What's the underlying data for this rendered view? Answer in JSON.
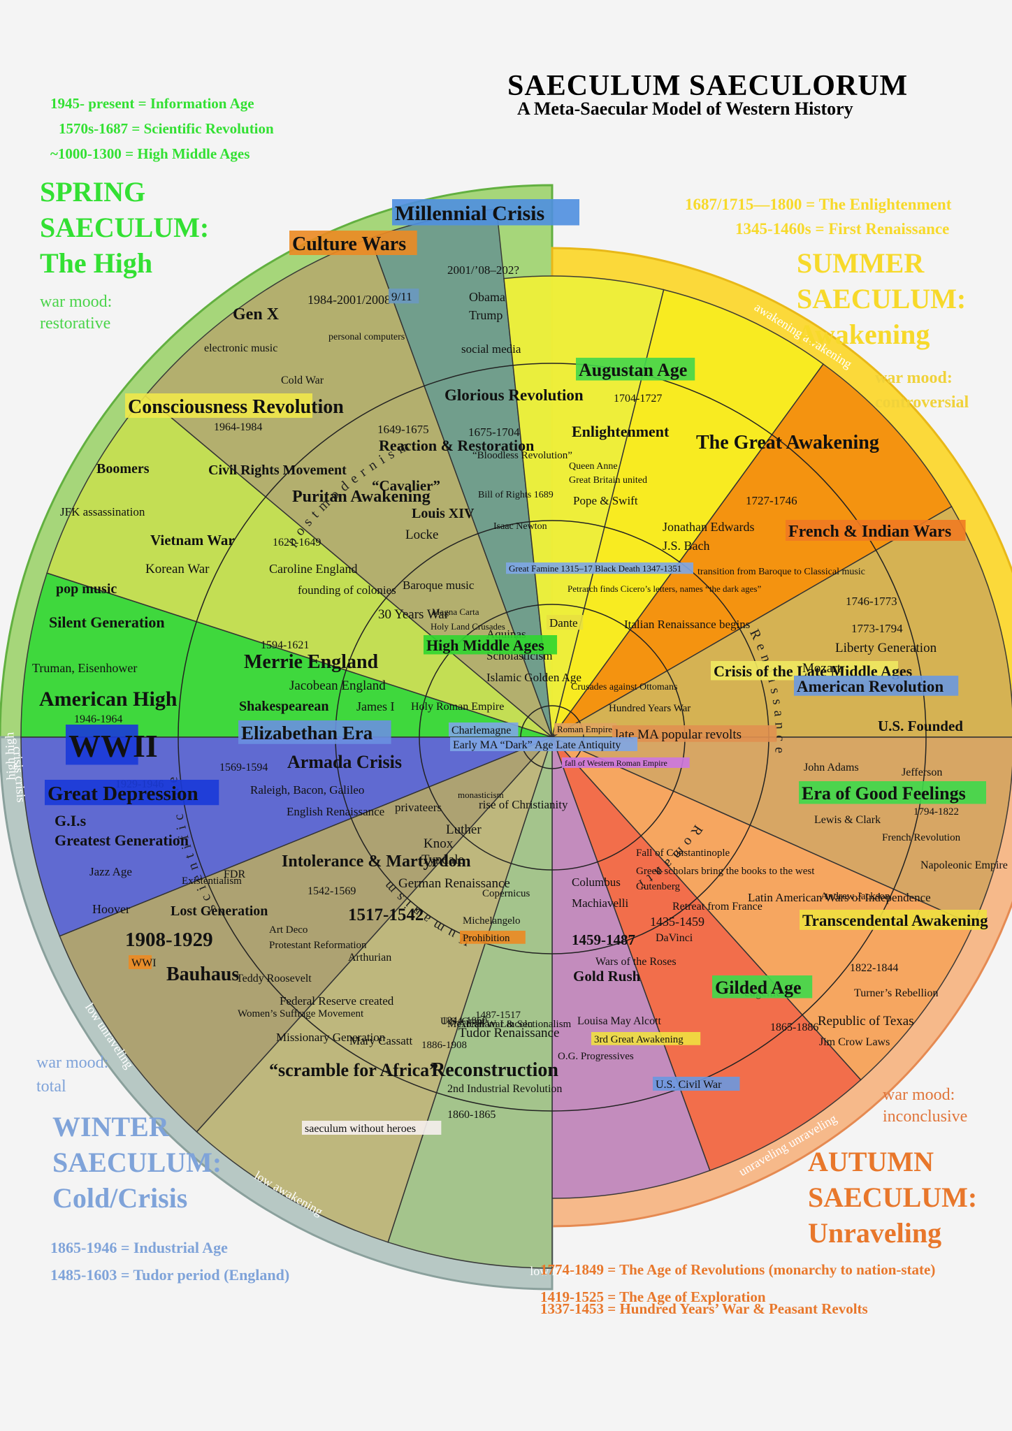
{
  "title": "SAECULUM  SAECULORUM",
  "subtitle": "A Meta-Saecular Model of Western History",
  "colors": {
    "spring": "#3ed94a",
    "summer": "#f8d51a",
    "autumn": "#ee7a38",
    "winter": "#7b9ed6"
  },
  "spring": {
    "eras": [
      "1945- present  = Information Age",
      "1570s-1687 =  Scientific Revolution",
      "~1000-1300  = High Middle Ages"
    ],
    "heading": [
      "SPRING",
      "SAECULUM:",
      "The High"
    ],
    "mood": [
      "war mood:",
      "restorative"
    ]
  },
  "summer": {
    "eras": [
      "1687/1715—1800 =   The Enlightenment",
      "1345-1460s = First Renaissance"
    ],
    "heading": [
      "SUMMER",
      "SAECULUM:",
      "Awakening"
    ],
    "mood": [
      "war mood:",
      "controversial"
    ]
  },
  "winter": {
    "eras": [
      "1865-1946  = Industrial Age",
      "1485-1603  = Tudor period (England)"
    ],
    "heading": [
      "WINTER",
      "SAECULUM:",
      "Cold/Crisis"
    ],
    "mood": [
      "war mood:",
      "total"
    ]
  },
  "autumn": {
    "eras": [
      "1774-1849 = The Age of Revolutions (monarchy to nation-state)",
      "1419-1525 = The Age of Exploration",
      "1337-1453 = Hundred Years’ War & Peasant Revolts"
    ],
    "heading": [
      "AUTUMN",
      "SAECULUM:",
      "Unraveling"
    ],
    "mood": [
      "war mood:",
      "inconclusive"
    ]
  },
  "wheel": {
    "rim_labels": [
      "high high",
      "awakening awakening",
      "awakening crisis",
      "unraveling unraveling",
      "low high",
      "low awakening",
      "low unraveling",
      "crisis crisis"
    ],
    "arc_labels": [
      "postmodernism",
      "scientific method",
      "Renaissance",
      "Humanism",
      "Romanticism"
    ],
    "labels": [
      {
        "t": "Millennial Crisis",
        "bg": "#4f8fe0"
      },
      {
        "t": "2001/’08–202?"
      },
      {
        "t": "Culture Wars",
        "bg": "#ec8a22"
      },
      {
        "t": "1984-2001/2008"
      },
      {
        "t": "9/11",
        "bg": "#6a98c0"
      },
      {
        "t": "Gen X"
      },
      {
        "t": "Obama"
      },
      {
        "t": "Trump"
      },
      {
        "t": "personal computers"
      },
      {
        "t": "electronic music"
      },
      {
        "t": "social media"
      },
      {
        "t": "Cold War"
      },
      {
        "t": "Glorious Revolution"
      },
      {
        "t": "1675-1704"
      },
      {
        "t": "“Bloodless Revolution”"
      },
      {
        "t": "Bill of Rights 1689"
      },
      {
        "t": "Isaac Newton"
      },
      {
        "t": "1649-1675"
      },
      {
        "t": "Reaction & Restoration"
      },
      {
        "t": "“Cavalier”"
      },
      {
        "t": "Louis XIV"
      },
      {
        "t": "Locke"
      },
      {
        "t": "Baroque music"
      },
      {
        "t": "Consciousness Revolution",
        "bg": "#f0e84a"
      },
      {
        "t": "1964-1984"
      },
      {
        "t": "Boomers"
      },
      {
        "t": "Civil Rights Movement"
      },
      {
        "t": "Puritan Awakening"
      },
      {
        "t": "1621-1649"
      },
      {
        "t": "Caroline England"
      },
      {
        "t": "founding of colonies"
      },
      {
        "t": "JFK assassination"
      },
      {
        "t": "Vietnam War"
      },
      {
        "t": "Korean War"
      },
      {
        "t": "pop music"
      },
      {
        "t": "Silent Generation"
      },
      {
        "t": "Truman, Eisenhower"
      },
      {
        "t": "American High"
      },
      {
        "t": "1946-1964"
      },
      {
        "t": "1594-1621"
      },
      {
        "t": "Merrie England"
      },
      {
        "t": "Jacobean England"
      },
      {
        "t": "Shakespearean"
      },
      {
        "t": "James I"
      },
      {
        "t": "30 Years War"
      },
      {
        "t": "Magna Carta"
      },
      {
        "t": "Holy Land Crusades"
      },
      {
        "t": "Aquinas"
      },
      {
        "t": "Scholasticism"
      },
      {
        "t": "Islamic Golden Age"
      },
      {
        "t": "High Middle Ages",
        "bg": "#2fd62f"
      },
      {
        "t": "Holy Roman Empire"
      },
      {
        "t": "Great Famine 1315–17 Black Death 1347-1351",
        "bg": "#7ea6e6"
      },
      {
        "t": "Dante",
        "bg": "#e8e040"
      },
      {
        "t": "Petrarch finds Cicero’s letters, names “the dark ages”"
      },
      {
        "t": "Augustan Age",
        "bg": "#43d64b"
      },
      {
        "t": "1704-1727"
      },
      {
        "t": "Enlightenment"
      },
      {
        "t": "Queen Anne"
      },
      {
        "t": "Great Britain united"
      },
      {
        "t": "Pope & Swift"
      },
      {
        "t": "The Great Awakening"
      },
      {
        "t": "1727-1746"
      },
      {
        "t": "Jonathan Edwards"
      },
      {
        "t": "J.S. Bach"
      },
      {
        "t": "French & Indian Wars",
        "bg": "#f07a22"
      },
      {
        "t": "1746-1773"
      },
      {
        "t": "transition from Baroque to Classical music"
      },
      {
        "t": "Italian Renaissance begins"
      },
      {
        "t": "Crusades against Ottomans"
      },
      {
        "t": "Hundred Years War"
      },
      {
        "t": "Crisis of the Late Middle Ages",
        "bg": "#f0e860"
      },
      {
        "t": "1773-1794"
      },
      {
        "t": "Liberty Generation"
      },
      {
        "t": "Mozart"
      },
      {
        "t": "American Revolution",
        "bg": "#6a98e0"
      },
      {
        "t": "U.S. Founded"
      },
      {
        "t": "Roman Empire",
        "bg": "#e0a460"
      },
      {
        "t": "late MA popular revolts",
        "bg": "#e09050"
      },
      {
        "t": "fall of Western Roman Empire",
        "bg": "#cc77e0"
      },
      {
        "t": "Elizabethan Era",
        "bg": "#6a90e0"
      },
      {
        "t": "Charlemagne",
        "bg": "#7ea6e6"
      },
      {
        "t": "Early MA “Dark” Age Late Antiquity",
        "bg": "#7ea6e6"
      },
      {
        "t": "WWII",
        "bg": "#1a3ad8"
      },
      {
        "t": "1929-1946"
      },
      {
        "t": "Great Depression",
        "bg": "#1a3ad8"
      },
      {
        "t": "G.I.s"
      },
      {
        "t": "Greatest Generation"
      },
      {
        "t": "1569-1594"
      },
      {
        "t": "Armada Crisis"
      },
      {
        "t": "Raleigh, Bacon, Galileo"
      },
      {
        "t": "English Renaissance"
      },
      {
        "t": "privateers"
      },
      {
        "t": "monasticism"
      },
      {
        "t": "rise of Christianity"
      },
      {
        "t": "John Adams"
      },
      {
        "t": "Jefferson"
      },
      {
        "t": "Era of Good Feelings",
        "bg": "#3ed94a"
      },
      {
        "t": "1794-1822"
      },
      {
        "t": "Lewis & Clark"
      },
      {
        "t": "French Revolution"
      },
      {
        "t": "Napoleonic Empire"
      },
      {
        "t": "Latin American Wars of Independence"
      },
      {
        "t": "Andrew Jackson"
      },
      {
        "t": "Transcendental Awakening",
        "bg": "#f0e040"
      },
      {
        "t": "1822-1844"
      },
      {
        "t": "Turner’s Rebellion"
      },
      {
        "t": "Jazz Age"
      },
      {
        "t": "FDR"
      },
      {
        "t": "Existentialism"
      },
      {
        "t": "Hoover"
      },
      {
        "t": "Lost Generation"
      },
      {
        "t": "Intolerance & Martyrdom"
      },
      {
        "t": "1542-1569"
      },
      {
        "t": "Luther"
      },
      {
        "t": "Knox"
      },
      {
        "t": "Tyndale"
      },
      {
        "t": "German Renaissance"
      },
      {
        "t": "Fall of Constantinople"
      },
      {
        "t": "Greek scholars bring the books to the west"
      },
      {
        "t": "Gutenberg"
      },
      {
        "t": "Retreat from France"
      },
      {
        "t": "1435-1459"
      },
      {
        "t": "DaVinci"
      },
      {
        "t": "Columbus"
      },
      {
        "t": "Machiavelli"
      },
      {
        "t": "Copernicus"
      },
      {
        "t": "Michelangelo"
      },
      {
        "t": "Prohibition",
        "bg": "#ec8a22"
      },
      {
        "t": "1908-1929"
      },
      {
        "t": "WWI",
        "bg": "#ec8a22"
      },
      {
        "t": "Bauhaus"
      },
      {
        "t": "Art Deco"
      },
      {
        "t": "Protestant Reformation"
      },
      {
        "t": "1517-1542"
      },
      {
        "t": "Arthurian"
      },
      {
        "t": "1459-1487"
      },
      {
        "t": "Wars of the Roses"
      },
      {
        "t": "Gold Rush"
      },
      {
        "t": "eugenics"
      },
      {
        "t": "Teddy Roosevelt"
      },
      {
        "t": "Federal Reserve created"
      },
      {
        "t": "Women’s Suffrage Movement"
      },
      {
        "t": "1487-1517"
      },
      {
        "t": "Tudor Renaissance"
      },
      {
        "t": "Mexican War & Sectionalism"
      },
      {
        "t": "1844-1860"
      },
      {
        "t": "Republic of Texas"
      },
      {
        "t": "Jim Crow Laws"
      },
      {
        "t": "Missionary Generation"
      },
      {
        "t": "Mary Cassatt"
      },
      {
        "t": "U.S. Grant"
      },
      {
        "t": "Abraham Lincoln"
      },
      {
        "t": "Louisa May Alcott"
      },
      {
        "t": "3rd Great Awakening",
        "bg": "#f0e040"
      },
      {
        "t": "1886-1908"
      },
      {
        "t": "Gilded Age",
        "bg": "#3ed94a"
      },
      {
        "t": "1865-1886"
      },
      {
        "t": "“scramble for Africa”"
      },
      {
        "t": "saeculum without heroes",
        "bg": "#f6f0ee"
      },
      {
        "t": "Reconstruction"
      },
      {
        "t": "2nd Industrial Revolution"
      },
      {
        "t": "O.G. Progressives"
      },
      {
        "t": "U.S. Civil War",
        "bg": "#6a98e0"
      },
      {
        "t": "1860-1865"
      }
    ]
  }
}
